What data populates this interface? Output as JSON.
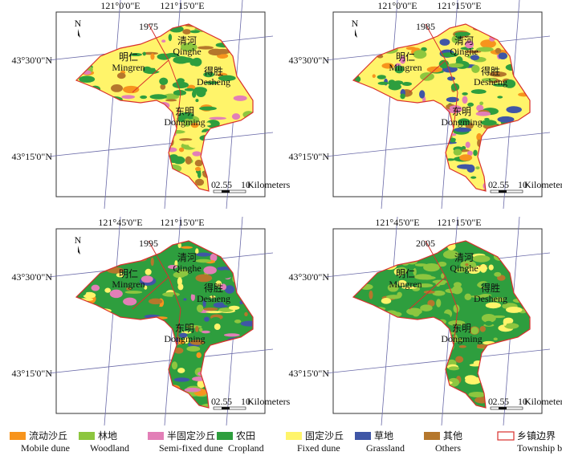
{
  "panels": [
    {
      "year": "1975",
      "north": "N",
      "lon_labels": [
        "121°0'0\"E",
        "121°15'0\"E"
      ],
      "lat_labels": [
        "43°30'0\"N",
        "43°15'0\"N"
      ],
      "townships": [
        {
          "zh": "明仁",
          "en": "Mingren"
        },
        {
          "zh": "清河",
          "en": "Qinghe"
        },
        {
          "zh": "得胜",
          "en": "Desheng"
        },
        {
          "zh": "东明",
          "en": "Dongming"
        }
      ],
      "scale": {
        "ticks": [
          "0",
          "2.5",
          "5",
          "10"
        ],
        "unit": "Kilometers"
      }
    },
    {
      "year": "1985",
      "north": "N",
      "lon_labels": [
        "121°0'0\"E",
        "121°15'0\"E"
      ],
      "lat_labels": [
        "43°30'0\"N",
        "43°15'0\"N"
      ],
      "townships": [
        {
          "zh": "明仁",
          "en": "Mingren"
        },
        {
          "zh": "清河",
          "en": "Qinghe"
        },
        {
          "zh": "得胜",
          "en": "Desheng"
        },
        {
          "zh": "东明",
          "en": "Dongming"
        }
      ],
      "scale": {
        "ticks": [
          "0",
          "2.5",
          "5",
          "10"
        ],
        "unit": "Kilometers"
      }
    },
    {
      "year": "1995",
      "north": "N",
      "lon_labels": [
        "121°45'0\"E",
        "121°15'0\"E"
      ],
      "lat_labels": [
        "43°30'0\"N",
        "43°15'0\"N"
      ],
      "townships": [
        {
          "zh": "明仁",
          "en": "Mingren"
        },
        {
          "zh": "清河",
          "en": "Qinghe"
        },
        {
          "zh": "得胜",
          "en": "Desheng"
        },
        {
          "zh": "东明",
          "en": "Dongming"
        }
      ],
      "scale": {
        "ticks": [
          "0",
          "2.5",
          "5",
          "10"
        ],
        "unit": "Kilometers"
      }
    },
    {
      "year": "2005",
      "lon_labels": [
        "121°45'0\"E",
        "121°15'0\"E"
      ],
      "lat_labels": [
        "43°30'0\"N",
        "43°15'0\"N"
      ],
      "townships": [
        {
          "zh": "明仁",
          "en": "Mingren"
        },
        {
          "zh": "清河",
          "en": "Qinghe"
        },
        {
          "zh": "得胜",
          "en": "Desheng"
        },
        {
          "zh": "东明",
          "en": "Dongming"
        }
      ],
      "scale": {
        "ticks": [
          "0",
          "2.5",
          "5",
          "10"
        ],
        "unit": "Kilometers"
      }
    }
  ],
  "legend": [
    {
      "zh": "流动沙丘",
      "en": "Mobile dune",
      "color": "#f7941d"
    },
    {
      "zh": "林地",
      "en": "Woodland",
      "color": "#8dc63f"
    },
    {
      "zh": "半固定沙丘",
      "en": "Semi-fixed dune",
      "color": "#e27fb7"
    },
    {
      "zh": "农田",
      "en": "Cropland",
      "color": "#2e9e3e"
    },
    {
      "zh": "固定沙丘",
      "en": "Fixed dune",
      "color": "#fff46a"
    },
    {
      "zh": "草地",
      "en": "Grassland",
      "color": "#3f56a6"
    },
    {
      "zh": "其他",
      "en": "Others",
      "color": "#b5772c"
    },
    {
      "zh": "乡镇边界",
      "en": "Township border",
      "color": "#d9302c"
    }
  ]
}
